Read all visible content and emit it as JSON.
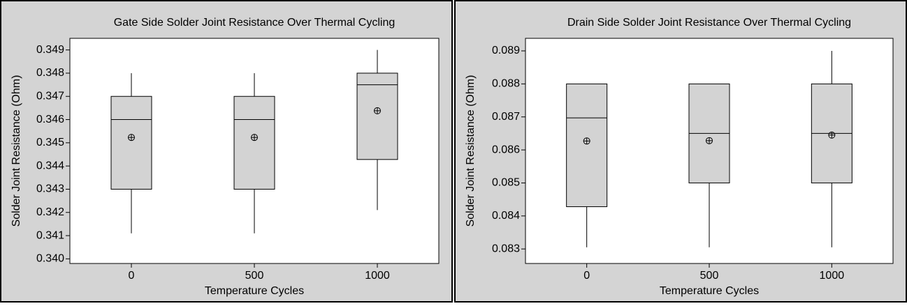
{
  "chart_data": [
    {
      "type": "box",
      "title": "Gate Side Solder Joint Resistance Over Thermal Cycling",
      "x_label": "Temperature Cycles",
      "y_label": "Solder Joint Resistance (Ohm)",
      "categories": [
        "0",
        "500",
        "1000"
      ],
      "boxes": [
        {
          "min": 0.3411,
          "q1": 0.343,
          "median": 0.346,
          "q3": 0.347,
          "max": 0.348,
          "mean": 0.34523
        },
        {
          "min": 0.3411,
          "q1": 0.343,
          "median": 0.346,
          "q3": 0.347,
          "max": 0.348,
          "mean": 0.34523
        },
        {
          "min": 0.3421,
          "q1": 0.34428,
          "median": 0.3475,
          "q3": 0.348,
          "max": 0.349,
          "mean": 0.34638
        }
      ],
      "color": "#d3d3d3",
      "ylim": [
        0.3398,
        0.3495
      ],
      "yticks": [
        {
          "value": 0.34,
          "label": "0.340"
        },
        0.341,
        0.342,
        0.343,
        0.344,
        0.345,
        0.346,
        0.347,
        0.348,
        0.349
      ]
    },
    {
      "type": "box",
      "title": "Drain Side Solder Joint Resistance Over Thermal Cycling",
      "x_label": "Temperature Cycles",
      "y_label": "Solder Joint Resistance (Ohm)",
      "categories": [
        "0",
        "500",
        "1000"
      ],
      "boxes": [
        {
          "min": 0.08305,
          "q1": 0.08428,
          "median": 0.08697,
          "q3": 0.088,
          "max": 0.088,
          "mean": 0.08627
        },
        {
          "min": 0.08305,
          "q1": 0.085,
          "median": 0.0865,
          "q3": 0.088,
          "max": 0.088,
          "mean": 0.08628
        },
        {
          "min": 0.08305,
          "q1": 0.085,
          "median": 0.0865,
          "q3": 0.088,
          "max": 0.089,
          "mean": 0.08645
        }
      ],
      "color": "#d3d3d3",
      "ylim": [
        0.08256,
        0.08938
      ],
      "yticks": [
        0.083,
        0.084,
        0.085,
        0.086,
        0.087,
        0.088,
        0.089
      ]
    }
  ]
}
